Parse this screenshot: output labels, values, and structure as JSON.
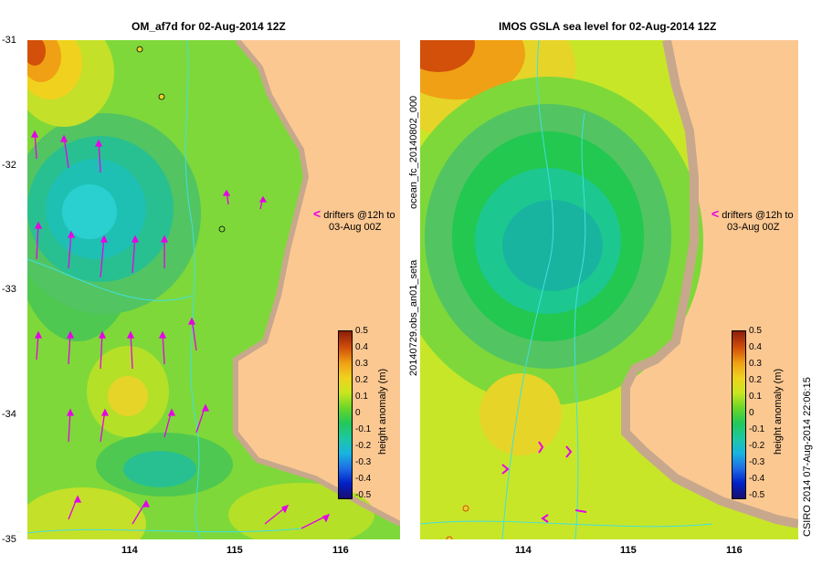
{
  "left_panel": {
    "title": "OM_af7d for 02-Aug-2014 12Z"
  },
  "right_panel": {
    "title": "IMOS GSLA sea level  for 02-Aug-2014 12Z"
  },
  "y_ticks": [
    "-31",
    "-32",
    "-33",
    "-34",
    "-35"
  ],
  "x_ticks": [
    "114",
    "115",
    "116"
  ],
  "drifter_label": {
    "line1": "drifters @12h to",
    "line2": "03-Aug 00Z"
  },
  "colorbar": {
    "title": "height anomaly (m)",
    "labels": [
      "0.5",
      "0.4",
      "0.3",
      "0.2",
      "0.1",
      "0",
      "-0.1",
      "-0.2",
      "-0.3",
      "-0.4",
      "-0.5"
    ]
  },
  "side_text": {
    "forecast_id": "ocean_fc_20140802_000",
    "obs_id": "20140729.obs_an01_seta"
  },
  "credit": "CSIRO 2014   07-Aug-2014 22:06:15",
  "colors": {
    "land": "#fcc892",
    "coast": "#c8a88c",
    "vector": "#e600e6",
    "river": "#40e0e0"
  }
}
